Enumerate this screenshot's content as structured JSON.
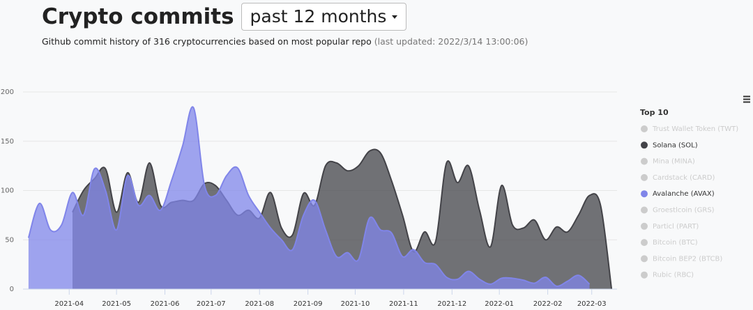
{
  "header": {
    "title": "Crypto commits",
    "range_selector": "past 12 months",
    "subtitle": "Github commit history of 316 cryptocurrencies based on most popular repo",
    "last_updated": "(last updated: 2022/3/14 13:00:06)"
  },
  "chart_data": {
    "type": "areaspline",
    "legend_title": "Top 10",
    "legend_position": "right",
    "grid": true,
    "x": [
      0,
      1,
      2,
      3,
      4,
      5,
      6,
      7,
      8,
      9,
      10,
      11,
      12,
      13,
      14,
      15,
      16,
      17,
      18,
      19,
      20,
      21,
      22,
      23,
      24,
      25,
      26,
      27,
      28,
      29,
      30,
      31,
      32,
      33,
      34,
      35,
      36,
      37,
      38,
      39,
      40,
      41,
      42,
      43,
      44,
      45,
      46,
      47,
      48,
      49,
      50,
      51,
      52,
      53
    ],
    "xlim": [
      -0.5,
      53.5
    ],
    "xticks": [
      {
        "value": 3.7,
        "label": "2021-04"
      },
      {
        "value": 8.0,
        "label": "2021-05"
      },
      {
        "value": 12.4,
        "label": "2021-06"
      },
      {
        "value": 16.6,
        "label": "2021-07"
      },
      {
        "value": 21.0,
        "label": "2021-08"
      },
      {
        "value": 25.4,
        "label": "2021-09"
      },
      {
        "value": 29.7,
        "label": "2021-10"
      },
      {
        "value": 34.1,
        "label": "2021-11"
      },
      {
        "value": 38.5,
        "label": "2021-12"
      },
      {
        "value": 42.8,
        "label": "2022-01"
      },
      {
        "value": 47.2,
        "label": "2022-02"
      },
      {
        "value": 51.2,
        "label": "2022-03"
      }
    ],
    "ylim": [
      0,
      200
    ],
    "yticks": [
      0,
      50,
      100,
      150,
      200
    ],
    "series": [
      {
        "name": "Trust Wallet Token (TWT)",
        "visible": false
      },
      {
        "name": "Solana (SOL)",
        "visible": true,
        "color": "#434348",
        "values": [
          null,
          null,
          null,
          null,
          78,
          100,
          112,
          122,
          78,
          118,
          88,
          128,
          85,
          88,
          90,
          90,
          107,
          105,
          90,
          75,
          80,
          72,
          98,
          62,
          55,
          97,
          85,
          125,
          128,
          120,
          125,
          140,
          138,
          110,
          75,
          38,
          58,
          48,
          128,
          108,
          125,
          80,
          43,
          105,
          65,
          62,
          70,
          50,
          63,
          58,
          75,
          95,
          85,
          0
        ]
      },
      {
        "name": "Mina (MINA)",
        "visible": false
      },
      {
        "name": "Cardstack (CARD)",
        "visible": false
      },
      {
        "name": "Avalanche (AVAX)",
        "visible": true,
        "color": "#8085e9",
        "values": [
          52,
          87,
          60,
          65,
          98,
          75,
          122,
          100,
          60,
          115,
          85,
          95,
          80,
          110,
          145,
          184,
          105,
          95,
          115,
          123,
          95,
          78,
          62,
          50,
          40,
          75,
          90,
          60,
          33,
          37,
          30,
          72,
          60,
          57,
          33,
          40,
          27,
          25,
          12,
          10,
          18,
          10,
          5,
          11,
          11,
          9,
          6,
          12,
          3,
          8,
          14,
          5,
          null,
          null
        ]
      },
      {
        "name": "Groestlcoin (GRS)",
        "visible": false
      },
      {
        "name": "Particl (PART)",
        "visible": false
      },
      {
        "name": "Bitcoin (BTC)",
        "visible": false
      },
      {
        "name": "Bitcoin BEP2 (BTCB)",
        "visible": false
      },
      {
        "name": "Rubic (RBC)",
        "visible": false
      }
    ]
  }
}
